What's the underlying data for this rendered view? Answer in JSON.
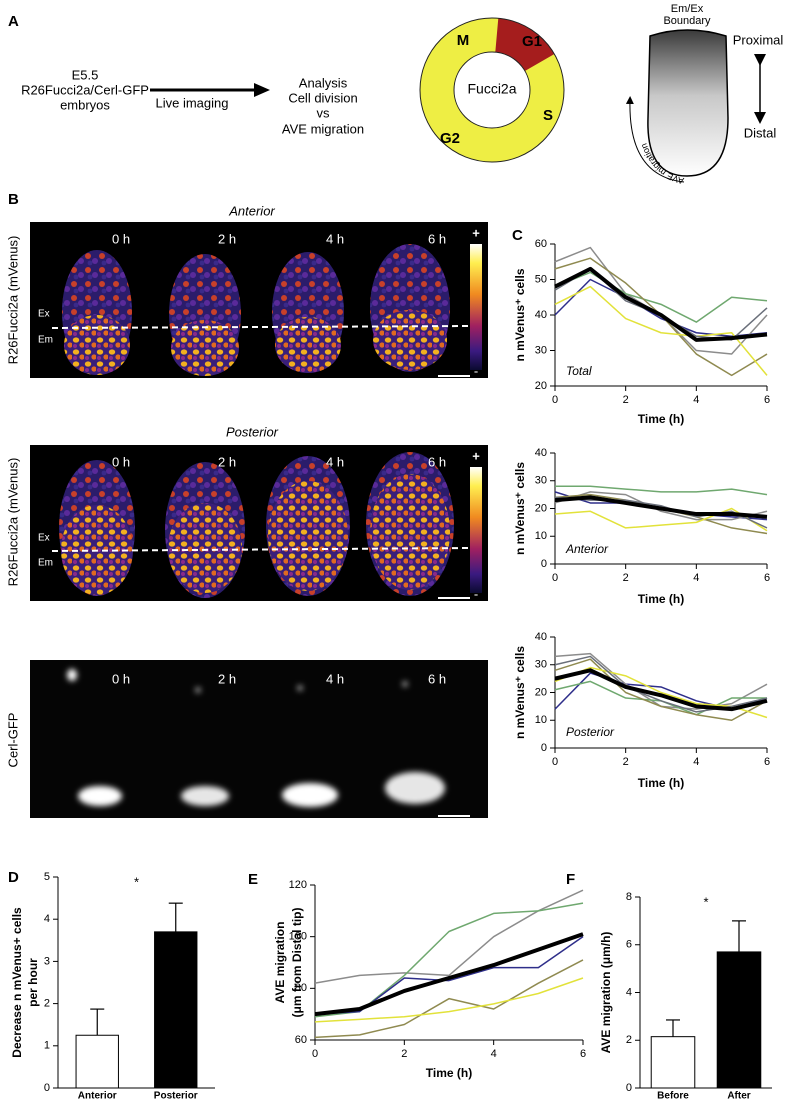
{
  "panel_labels": [
    "A",
    "B",
    "C",
    "D",
    "E",
    "F"
  ],
  "panel_a": {
    "embryo_text": [
      "E5.5",
      "R26Fucci2a/Cerl-GFP",
      "embryos"
    ],
    "arrow_text": "Live imaging",
    "analysis_text": [
      "Analysis",
      "Cell division",
      "vs",
      "AVE migration"
    ],
    "cycle": {
      "center": "Fucci2a",
      "phases": [
        "M",
        "G1",
        "S",
        "G2"
      ]
    },
    "schematic": {
      "boundary": [
        "Em/Ex",
        "Boundary"
      ],
      "proximal": "Proximal",
      "distal": "Distal",
      "migration": "AVE migration"
    }
  },
  "panel_b": {
    "rows": [
      "Anterior",
      "Posterior"
    ],
    "times": [
      "0 h",
      "2 h",
      "4 h",
      "6 h"
    ],
    "ylabels": [
      "R26Fucci2a (mVenus)",
      "Cerl-GFP"
    ],
    "regions": [
      "Ex",
      "Em"
    ],
    "scale": [
      "+",
      "-"
    ]
  },
  "chart_data": [
    {
      "type": "line",
      "annotation": "Total",
      "ylabel": "n mVenus⁺ cells",
      "xlabel": "Time (h)",
      "x": [
        0,
        1,
        2,
        3,
        4,
        5,
        6
      ],
      "xlim": [
        0,
        6
      ],
      "xticks": [
        0,
        2,
        4,
        6
      ],
      "ylim": [
        20,
        60
      ],
      "yticks": [
        20,
        30,
        40,
        50,
        60
      ],
      "series": [
        {
          "color": "#2e2e8a",
          "linewidth": 1.5,
          "values": [
            40,
            50,
            45,
            39,
            35,
            34,
            35
          ]
        },
        {
          "color": "#8c8c8c",
          "linewidth": 1.5,
          "values": [
            55,
            59,
            46,
            40,
            30,
            29,
            40
          ]
        },
        {
          "color": "#6fa86f",
          "linewidth": 1.5,
          "values": [
            48,
            52,
            46,
            43,
            38,
            45,
            44
          ]
        },
        {
          "color": "#8f8a50",
          "linewidth": 1.5,
          "values": [
            53,
            56,
            49,
            40,
            29,
            23,
            29
          ]
        },
        {
          "color": "#e2e23a",
          "linewidth": 1.5,
          "values": [
            43,
            48,
            39,
            35,
            34,
            35,
            23
          ]
        },
        {
          "color": "#6a6f7a",
          "linewidth": 1.5,
          "values": [
            47,
            53,
            44,
            40,
            34,
            33,
            42
          ]
        },
        {
          "color": "#000000",
          "linewidth": 4,
          "values": [
            48,
            53,
            45,
            40,
            33,
            33.5,
            34.5
          ]
        }
      ]
    },
    {
      "type": "line",
      "annotation": "Anterior",
      "ylabel": "n mVenus⁺ cells",
      "xlabel": "Time (h)",
      "x": [
        0,
        1,
        2,
        3,
        4,
        5,
        6
      ],
      "xlim": [
        0,
        6
      ],
      "xticks": [
        0,
        2,
        4,
        6
      ],
      "ylim": [
        0,
        40
      ],
      "yticks": [
        0,
        10,
        20,
        30,
        40
      ],
      "series": [
        {
          "color": "#2e2e8a",
          "linewidth": 1.5,
          "values": [
            26,
            22,
            22,
            20,
            18,
            17,
            16
          ]
        },
        {
          "color": "#8c8c8c",
          "linewidth": 1.5,
          "values": [
            22,
            26,
            25,
            19,
            16,
            16,
            19
          ]
        },
        {
          "color": "#6fa86f",
          "linewidth": 1.5,
          "values": [
            28,
            28,
            27,
            26,
            26,
            27,
            25
          ]
        },
        {
          "color": "#8f8a50",
          "linewidth": 1.5,
          "values": [
            24,
            25,
            23,
            20,
            17,
            13,
            11
          ]
        },
        {
          "color": "#e2e23a",
          "linewidth": 1.5,
          "values": [
            18,
            19,
            13,
            14,
            15,
            20,
            12
          ]
        },
        {
          "color": "#6a6f7a",
          "linewidth": 1.5,
          "values": [
            24,
            23,
            23,
            21,
            17,
            19,
            13
          ]
        },
        {
          "color": "#000000",
          "linewidth": 4,
          "values": [
            23,
            24,
            22,
            20,
            18,
            18,
            17
          ]
        }
      ]
    },
    {
      "type": "line",
      "annotation": "Posterior",
      "ylabel": "n mVenus⁺ cells",
      "xlabel": "Time (h)",
      "x": [
        0,
        1,
        2,
        3,
        4,
        5,
        6
      ],
      "xlim": [
        0,
        6
      ],
      "xticks": [
        0,
        2,
        4,
        6
      ],
      "ylim": [
        0,
        40
      ],
      "yticks": [
        0,
        10,
        20,
        30,
        40
      ],
      "series": [
        {
          "color": "#2e2e8a",
          "linewidth": 1.5,
          "values": [
            14,
            27,
            23,
            22,
            17,
            14,
            18
          ]
        },
        {
          "color": "#8c8c8c",
          "linewidth": 1.5,
          "values": [
            33,
            34,
            23,
            15,
            14,
            16,
            23
          ]
        },
        {
          "color": "#6fa86f",
          "linewidth": 1.5,
          "values": [
            21,
            24,
            18,
            17,
            12,
            18,
            18
          ]
        },
        {
          "color": "#8f8a50",
          "linewidth": 1.5,
          "values": [
            28,
            32,
            20,
            15,
            12,
            10,
            17
          ]
        },
        {
          "color": "#e2e23a",
          "linewidth": 1.5,
          "values": [
            24,
            29,
            26,
            20,
            16,
            15,
            11
          ]
        },
        {
          "color": "#6a6f7a",
          "linewidth": 1.5,
          "values": [
            30,
            33,
            22,
            17,
            13,
            15,
            18
          ]
        },
        {
          "color": "#000000",
          "linewidth": 4,
          "values": [
            25,
            28,
            22,
            19,
            15,
            14,
            17
          ]
        }
      ]
    },
    {
      "type": "bar",
      "annotation": "*",
      "ylabel": [
        "Decrease n mVenus+ cells",
        "per hour"
      ],
      "categories": [
        "Anterior",
        "Posterior"
      ],
      "values": [
        1.25,
        3.7
      ],
      "errors": [
        0.62,
        0.68
      ],
      "colors": [
        "#ffffff",
        "#000000"
      ],
      "ylim": [
        0,
        5
      ],
      "yticks": [
        0,
        1,
        2,
        3,
        4,
        5
      ]
    },
    {
      "type": "line",
      "ylabel": [
        "AVE migration",
        "(μm from Distal tip)"
      ],
      "xlabel": "Time (h)",
      "x": [
        0,
        1,
        2,
        3,
        4,
        5,
        6
      ],
      "xlim": [
        0,
        6
      ],
      "xticks": [
        0,
        2,
        4,
        6
      ],
      "ylim": [
        60,
        120
      ],
      "yticks": [
        60,
        80,
        100,
        120
      ],
      "series": [
        {
          "color": "#8c8c8c",
          "linewidth": 1.5,
          "values": [
            82,
            85,
            86,
            85,
            100,
            110,
            118
          ]
        },
        {
          "color": "#6fa86f",
          "linewidth": 1.5,
          "values": [
            69,
            71,
            85,
            102,
            109,
            110,
            113
          ]
        },
        {
          "color": "#8f8a50",
          "linewidth": 1.5,
          "values": [
            61,
            62,
            66,
            76,
            72,
            82,
            91
          ]
        },
        {
          "color": "#2e2e8a",
          "linewidth": 1.5,
          "values": [
            70,
            71,
            84,
            83,
            88,
            88,
            100
          ]
        },
        {
          "color": "#e2e23a",
          "linewidth": 1.5,
          "values": [
            67,
            68,
            69,
            71,
            74,
            78,
            84
          ]
        },
        {
          "color": "#000000",
          "linewidth": 4,
          "values": [
            70,
            72,
            79,
            84,
            89,
            95,
            101
          ]
        }
      ]
    },
    {
      "type": "bar",
      "annotation": "*",
      "ylabel": "AVE migration (μm/h)",
      "categories": [
        "Before",
        "After"
      ],
      "values": [
        2.15,
        5.7
      ],
      "errors": [
        0.7,
        1.3
      ],
      "colors": [
        "#ffffff",
        "#000000"
      ],
      "ylim": [
        0,
        8
      ],
      "yticks": [
        0,
        2,
        4,
        6,
        8
      ]
    }
  ]
}
